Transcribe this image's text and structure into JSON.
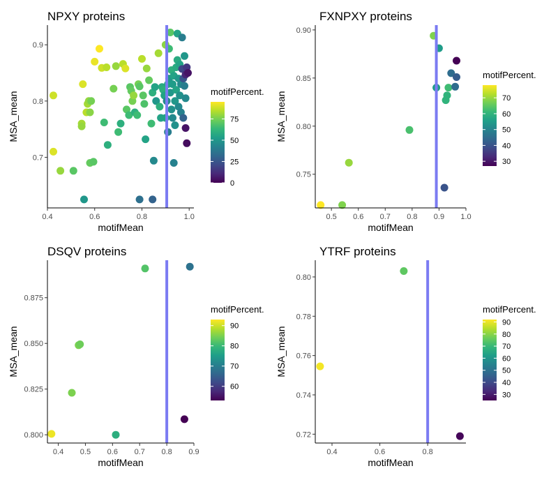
{
  "colors": {
    "vline": "#7b7bf2",
    "axis": "#000000",
    "viridis": [
      "#440154",
      "#482878",
      "#3e4a89",
      "#31688e",
      "#26828e",
      "#1f9e89",
      "#35b779",
      "#6ece58",
      "#b5de2b",
      "#fde725"
    ]
  },
  "chart_data": [
    {
      "type": "scatter",
      "title": "NPXY proteins",
      "xlabel": "motifMean",
      "ylabel": "MSA_mean",
      "xlim": [
        0.4,
        1.02
      ],
      "ylim": [
        0.61,
        0.935
      ],
      "xticks": [
        {
          "v": 0.4,
          "label": "0.4"
        },
        {
          "v": 0.6,
          "label": "0.6"
        },
        {
          "v": 0.8,
          "label": "0.8"
        },
        {
          "v": 1.0,
          "label": "1.0"
        }
      ],
      "yticks": [
        {
          "v": 0.7,
          "label": "0.7"
        },
        {
          "v": 0.8,
          "label": "0.8"
        },
        {
          "v": 0.9,
          "label": "0.9"
        }
      ],
      "vline": 0.905,
      "color_scale": {
        "name": "motifPercent.",
        "min": 0,
        "max": 95,
        "ticks": [
          {
            "v": 0,
            "label": "0"
          },
          {
            "v": 25,
            "label": "25"
          },
          {
            "v": 50,
            "label": "50"
          },
          {
            "v": 75,
            "label": "75"
          }
        ]
      },
      "points": [
        {
          "x": 0.425,
          "y": 0.81,
          "c": 88
        },
        {
          "x": 0.425,
          "y": 0.71,
          "c": 90
        },
        {
          "x": 0.455,
          "y": 0.676,
          "c": 80
        },
        {
          "x": 0.51,
          "y": 0.676,
          "c": 70
        },
        {
          "x": 0.545,
          "y": 0.76,
          "c": 82
        },
        {
          "x": 0.545,
          "y": 0.755,
          "c": 80
        },
        {
          "x": 0.55,
          "y": 0.83,
          "c": 90
        },
        {
          "x": 0.565,
          "y": 0.78,
          "c": 85
        },
        {
          "x": 0.57,
          "y": 0.795,
          "c": 82
        },
        {
          "x": 0.575,
          "y": 0.8,
          "c": 80
        },
        {
          "x": 0.58,
          "y": 0.78,
          "c": 78
        },
        {
          "x": 0.585,
          "y": 0.8,
          "c": 75
        },
        {
          "x": 0.58,
          "y": 0.69,
          "c": 72
        },
        {
          "x": 0.595,
          "y": 0.692,
          "c": 70
        },
        {
          "x": 0.6,
          "y": 0.87,
          "c": 92
        },
        {
          "x": 0.62,
          "y": 0.893,
          "c": 95
        },
        {
          "x": 0.63,
          "y": 0.859,
          "c": 88
        },
        {
          "x": 0.65,
          "y": 0.86,
          "c": 85
        },
        {
          "x": 0.64,
          "y": 0.762,
          "c": 65
        },
        {
          "x": 0.655,
          "y": 0.722,
          "c": 60
        },
        {
          "x": 0.68,
          "y": 0.822,
          "c": 75
        },
        {
          "x": 0.69,
          "y": 0.862,
          "c": 80
        },
        {
          "x": 0.7,
          "y": 0.745,
          "c": 65
        },
        {
          "x": 0.71,
          "y": 0.76,
          "c": 60
        },
        {
          "x": 0.72,
          "y": 0.866,
          "c": 85
        },
        {
          "x": 0.73,
          "y": 0.858,
          "c": 90
        },
        {
          "x": 0.735,
          "y": 0.785,
          "c": 70
        },
        {
          "x": 0.745,
          "y": 0.775,
          "c": 65
        },
        {
          "x": 0.75,
          "y": 0.825,
          "c": 70
        },
        {
          "x": 0.755,
          "y": 0.818,
          "c": 72
        },
        {
          "x": 0.76,
          "y": 0.8,
          "c": 75
        },
        {
          "x": 0.765,
          "y": 0.81,
          "c": 80
        },
        {
          "x": 0.77,
          "y": 0.78,
          "c": 60
        },
        {
          "x": 0.78,
          "y": 0.775,
          "c": 65
        },
        {
          "x": 0.785,
          "y": 0.83,
          "c": 75
        },
        {
          "x": 0.79,
          "y": 0.826,
          "c": 70
        },
        {
          "x": 0.8,
          "y": 0.875,
          "c": 85
        },
        {
          "x": 0.805,
          "y": 0.81,
          "c": 70
        },
        {
          "x": 0.81,
          "y": 0.795,
          "c": 68
        },
        {
          "x": 0.815,
          "y": 0.732,
          "c": 55
        },
        {
          "x": 0.82,
          "y": 0.858,
          "c": 80
        },
        {
          "x": 0.83,
          "y": 0.837,
          "c": 72
        },
        {
          "x": 0.84,
          "y": 0.76,
          "c": 65
        },
        {
          "x": 0.845,
          "y": 0.815,
          "c": 60
        },
        {
          "x": 0.85,
          "y": 0.694,
          "c": 45
        },
        {
          "x": 0.855,
          "y": 0.825,
          "c": 55
        },
        {
          "x": 0.86,
          "y": 0.8,
          "c": 50
        },
        {
          "x": 0.87,
          "y": 0.885,
          "c": 82
        },
        {
          "x": 0.875,
          "y": 0.79,
          "c": 60
        },
        {
          "x": 0.88,
          "y": 0.77,
          "c": 55
        },
        {
          "x": 0.885,
          "y": 0.825,
          "c": 58
        },
        {
          "x": 0.89,
          "y": 0.82,
          "c": 60
        },
        {
          "x": 0.895,
          "y": 0.81,
          "c": 55
        },
        {
          "x": 0.9,
          "y": 0.9,
          "c": 78
        },
        {
          "x": 0.9,
          "y": 0.77,
          "c": 55
        },
        {
          "x": 0.905,
          "y": 0.8,
          "c": 45
        },
        {
          "x": 0.91,
          "y": 0.83,
          "c": 55
        },
        {
          "x": 0.91,
          "y": 0.745,
          "c": 40
        },
        {
          "x": 0.915,
          "y": 0.893,
          "c": 65
        },
        {
          "x": 0.915,
          "y": 0.84,
          "c": 50
        },
        {
          "x": 0.92,
          "y": 0.922,
          "c": 70
        },
        {
          "x": 0.92,
          "y": 0.815,
          "c": 50
        },
        {
          "x": 0.925,
          "y": 0.855,
          "c": 60
        },
        {
          "x": 0.925,
          "y": 0.785,
          "c": 48
        },
        {
          "x": 0.93,
          "y": 0.83,
          "c": 52
        },
        {
          "x": 0.93,
          "y": 0.77,
          "c": 45
        },
        {
          "x": 0.935,
          "y": 0.845,
          "c": 55
        },
        {
          "x": 0.935,
          "y": 0.69,
          "c": 42
        },
        {
          "x": 0.94,
          "y": 0.8,
          "c": 50
        },
        {
          "x": 0.94,
          "y": 0.757,
          "c": 48
        },
        {
          "x": 0.945,
          "y": 0.86,
          "c": 58
        },
        {
          "x": 0.945,
          "y": 0.82,
          "c": 55
        },
        {
          "x": 0.95,
          "y": 0.92,
          "c": 55
        },
        {
          "x": 0.95,
          "y": 0.873,
          "c": 58
        },
        {
          "x": 0.955,
          "y": 0.84,
          "c": 50
        },
        {
          "x": 0.955,
          "y": 0.79,
          "c": 45
        },
        {
          "x": 0.96,
          "y": 0.865,
          "c": 55
        },
        {
          "x": 0.96,
          "y": 0.81,
          "c": 48
        },
        {
          "x": 0.965,
          "y": 0.83,
          "c": 45
        },
        {
          "x": 0.965,
          "y": 0.78,
          "c": 42
        },
        {
          "x": 0.97,
          "y": 0.913,
          "c": 40
        },
        {
          "x": 0.97,
          "y": 0.857,
          "c": 20
        },
        {
          "x": 0.975,
          "y": 0.84,
          "c": 25
        },
        {
          "x": 0.975,
          "y": 0.77,
          "c": 30
        },
        {
          "x": 0.98,
          "y": 0.88,
          "c": 50
        },
        {
          "x": 0.98,
          "y": 0.827,
          "c": 40
        },
        {
          "x": 0.985,
          "y": 0.847,
          "c": 10
        },
        {
          "x": 0.985,
          "y": 0.805,
          "c": 45
        },
        {
          "x": 0.985,
          "y": 0.752,
          "c": 5
        },
        {
          "x": 0.99,
          "y": 0.86,
          "c": 15
        },
        {
          "x": 0.99,
          "y": 0.725,
          "c": 3
        },
        {
          "x": 0.995,
          "y": 0.85,
          "c": 5
        },
        {
          "x": 0.555,
          "y": 0.625,
          "c": 50
        },
        {
          "x": 0.79,
          "y": 0.625,
          "c": 35
        },
        {
          "x": 0.845,
          "y": 0.625,
          "c": 30
        }
      ]
    },
    {
      "type": "scatter",
      "title": "FXNPXY proteins",
      "xlabel": "motifMean",
      "ylabel": "MSA_mean",
      "xlim": [
        0.44,
        1.0
      ],
      "ylim": [
        0.715,
        0.905
      ],
      "xticks": [
        {
          "v": 0.5,
          "label": "0.5"
        },
        {
          "v": 0.6,
          "label": "0.6"
        },
        {
          "v": 0.7,
          "label": "0.7"
        },
        {
          "v": 0.8,
          "label": "0.8"
        },
        {
          "v": 0.9,
          "label": "0.9"
        },
        {
          "v": 1.0,
          "label": "1.0"
        }
      ],
      "yticks": [
        {
          "v": 0.75,
          "label": "0.75"
        },
        {
          "v": 0.8,
          "label": "0.80"
        },
        {
          "v": 0.85,
          "label": "0.85"
        },
        {
          "v": 0.9,
          "label": "0.90"
        }
      ],
      "vline": 0.89,
      "color_scale": {
        "name": "motifPercent.",
        "min": 27,
        "max": 78,
        "ticks": [
          {
            "v": 30,
            "label": "30"
          },
          {
            "v": 40,
            "label": "40"
          },
          {
            "v": 50,
            "label": "50"
          },
          {
            "v": 60,
            "label": "60"
          },
          {
            "v": 70,
            "label": "70"
          }
        ]
      },
      "points": [
        {
          "x": 0.46,
          "y": 0.718,
          "c": 78
        },
        {
          "x": 0.54,
          "y": 0.718,
          "c": 68
        },
        {
          "x": 0.565,
          "y": 0.762,
          "c": 70
        },
        {
          "x": 0.79,
          "y": 0.796,
          "c": 63
        },
        {
          "x": 0.88,
          "y": 0.894,
          "c": 68
        },
        {
          "x": 0.89,
          "y": 0.84,
          "c": 55
        },
        {
          "x": 0.9,
          "y": 0.881,
          "c": 55
        },
        {
          "x": 0.925,
          "y": 0.827,
          "c": 60
        },
        {
          "x": 0.93,
          "y": 0.832,
          "c": 60
        },
        {
          "x": 0.935,
          "y": 0.84,
          "c": 62
        },
        {
          "x": 0.945,
          "y": 0.855,
          "c": 45
        },
        {
          "x": 0.92,
          "y": 0.736,
          "c": 40
        },
        {
          "x": 0.96,
          "y": 0.841,
          "c": 45
        },
        {
          "x": 0.965,
          "y": 0.851,
          "c": 42
        },
        {
          "x": 0.965,
          "y": 0.868,
          "c": 27
        }
      ]
    },
    {
      "type": "scatter",
      "title": "DSQV proteins",
      "xlabel": "motifMean",
      "ylabel": "MSA_mean",
      "xlim": [
        0.36,
        0.9
      ],
      "ylim": [
        0.7955,
        0.8955
      ],
      "xticks": [
        {
          "v": 0.4,
          "label": "0.4"
        },
        {
          "v": 0.5,
          "label": "0.5"
        },
        {
          "v": 0.6,
          "label": "0.6"
        },
        {
          "v": 0.7,
          "label": "0.7"
        },
        {
          "v": 0.8,
          "label": "0.8"
        },
        {
          "v": 0.9,
          "label": "0.9"
        }
      ],
      "yticks": [
        {
          "v": 0.8,
          "label": "0.800"
        },
        {
          "v": 0.825,
          "label": "0.825"
        },
        {
          "v": 0.85,
          "label": "0.850"
        },
        {
          "v": 0.875,
          "label": "0.875"
        }
      ],
      "vline": 0.8,
      "color_scale": {
        "name": "motifPercent.",
        "min": 53,
        "max": 93,
        "ticks": [
          {
            "v": 60,
            "label": "60"
          },
          {
            "v": 70,
            "label": "70"
          },
          {
            "v": 80,
            "label": "80"
          },
          {
            "v": 90,
            "label": "90"
          }
        ]
      },
      "points": [
        {
          "x": 0.375,
          "y": 0.8005,
          "c": 92
        },
        {
          "x": 0.45,
          "y": 0.823,
          "c": 85
        },
        {
          "x": 0.475,
          "y": 0.849,
          "c": 85
        },
        {
          "x": 0.48,
          "y": 0.8495,
          "c": 84
        },
        {
          "x": 0.612,
          "y": 0.8,
          "c": 78
        },
        {
          "x": 0.72,
          "y": 0.891,
          "c": 82
        },
        {
          "x": 0.865,
          "y": 0.8085,
          "c": 53
        },
        {
          "x": 0.885,
          "y": 0.892,
          "c": 68
        }
      ]
    },
    {
      "type": "scatter",
      "title": "YTRF proteins",
      "xlabel": "motifMean",
      "ylabel": "MSA_mean",
      "xlim": [
        0.33,
        0.96
      ],
      "ylim": [
        0.7155,
        0.8085
      ],
      "xticks": [
        {
          "v": 0.4,
          "label": "0.4"
        },
        {
          "v": 0.6,
          "label": "0.6"
        },
        {
          "v": 0.8,
          "label": "0.8"
        }
      ],
      "yticks": [
        {
          "v": 0.72,
          "label": "0.72"
        },
        {
          "v": 0.74,
          "label": "0.74"
        },
        {
          "v": 0.76,
          "label": "0.76"
        },
        {
          "v": 0.78,
          "label": "0.78"
        },
        {
          "v": 0.8,
          "label": "0.80"
        }
      ],
      "vline": 0.8,
      "color_scale": {
        "name": "motifPercent.",
        "min": 25,
        "max": 92,
        "ticks": [
          {
            "v": 30,
            "label": "30"
          },
          {
            "v": 40,
            "label": "40"
          },
          {
            "v": 50,
            "label": "50"
          },
          {
            "v": 60,
            "label": "60"
          },
          {
            "v": 70,
            "label": "70"
          },
          {
            "v": 80,
            "label": "80"
          },
          {
            "v": 90,
            "label": "90"
          }
        ]
      },
      "points": [
        {
          "x": 0.35,
          "y": 0.7545,
          "c": 91
        },
        {
          "x": 0.7,
          "y": 0.803,
          "c": 75
        },
        {
          "x": 0.935,
          "y": 0.719,
          "c": 26
        }
      ]
    }
  ]
}
